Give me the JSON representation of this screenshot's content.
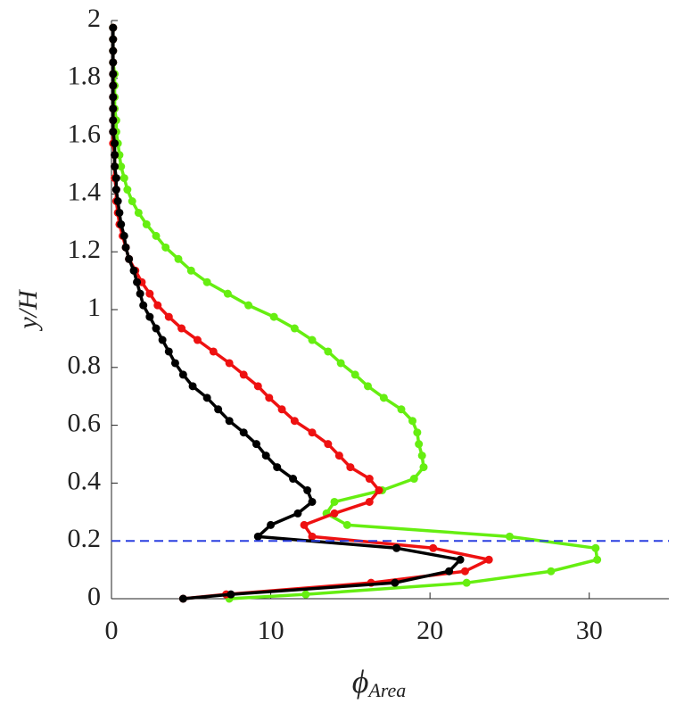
{
  "chart_data": {
    "type": "line",
    "xlabel": "ϕ",
    "xlabel_sub": "Area",
    "ylabel": "y/H",
    "xlim": [
      0,
      35
    ],
    "ylim": [
      0,
      2
    ],
    "xticks": [
      0,
      10,
      20,
      30
    ],
    "yticks": [
      0,
      0.2,
      0.4,
      0.6,
      0.8,
      1,
      1.2,
      1.4,
      1.6,
      1.8,
      2
    ],
    "hline": {
      "y": 0.2,
      "color": "#2a3fe0"
    },
    "y": [
      0,
      0.015,
      0.055,
      0.095,
      0.135,
      0.175,
      0.215,
      0.255,
      0.295,
      0.335,
      0.375,
      0.415,
      0.455,
      0.495,
      0.535,
      0.575,
      0.615,
      0.655,
      0.695,
      0.735,
      0.775,
      0.815,
      0.855,
      0.895,
      0.935,
      0.975,
      1.015,
      1.055,
      1.095,
      1.135,
      1.175,
      1.215,
      1.255,
      1.295,
      1.335,
      1.375,
      1.415,
      1.455,
      1.495,
      1.535,
      1.575,
      1.615,
      1.655,
      1.695,
      1.735,
      1.775,
      1.815,
      1.855,
      1.895,
      1.935,
      1.975
    ],
    "series": [
      {
        "color": "#66ee11",
        "x": [
          7.4,
          12.2,
          22.3,
          27.6,
          30.5,
          30.4,
          25,
          14.8,
          13.5,
          14.0,
          17.0,
          19.0,
          19.6,
          19.5,
          19.3,
          19.2,
          18.9,
          18.2,
          17.1,
          16.1,
          15.3,
          14.4,
          13.6,
          12.6,
          11.5,
          10.2,
          8.6,
          7.3,
          6.0,
          5.0,
          4.2,
          3.4,
          2.8,
          2.2,
          1.7,
          1.3,
          1.0,
          0.8,
          0.6,
          0.5,
          0.4,
          0.3,
          0.3,
          0.2,
          0.2,
          0.2,
          0.2,
          0.1,
          0.1,
          0.1,
          0.1
        ]
      },
      {
        "color": "#ee1111",
        "x": [
          4.5,
          7.2,
          16.3,
          22.2,
          23.7,
          20.2,
          12.6,
          12.1,
          14.0,
          16.2,
          16.8,
          16.2,
          15.0,
          14.3,
          13.6,
          12.6,
          11.5,
          10.7,
          9.9,
          9.2,
          8.3,
          7.4,
          6.4,
          5.4,
          4.4,
          3.6,
          2.9,
          2.4,
          1.9,
          1.5,
          1.1,
          0.9,
          0.7,
          0.5,
          0.4,
          0.3,
          0.3,
          0.2,
          0.2,
          0.2,
          0.1,
          0.1,
          0.1,
          0.1,
          0.1,
          0.1,
          0.1,
          0.1,
          0.1,
          0.1,
          0.1
        ]
      },
      {
        "color": "#000000",
        "x": [
          4.5,
          7.5,
          17.8,
          21.2,
          21.9,
          17.9,
          9.2,
          10.0,
          11.7,
          12.6,
          12.3,
          11.4,
          10.4,
          9.7,
          9.1,
          8.3,
          7.4,
          6.7,
          6.0,
          5.1,
          4.5,
          4.0,
          3.6,
          3.2,
          2.8,
          2.4,
          2.0,
          1.8,
          1.6,
          1.4,
          1.1,
          0.9,
          0.8,
          0.6,
          0.5,
          0.4,
          0.3,
          0.3,
          0.2,
          0.2,
          0.2,
          0.1,
          0.1,
          0.1,
          0.1,
          0.1,
          0.1,
          0.1,
          0.1,
          0.1,
          0.1
        ]
      }
    ]
  }
}
